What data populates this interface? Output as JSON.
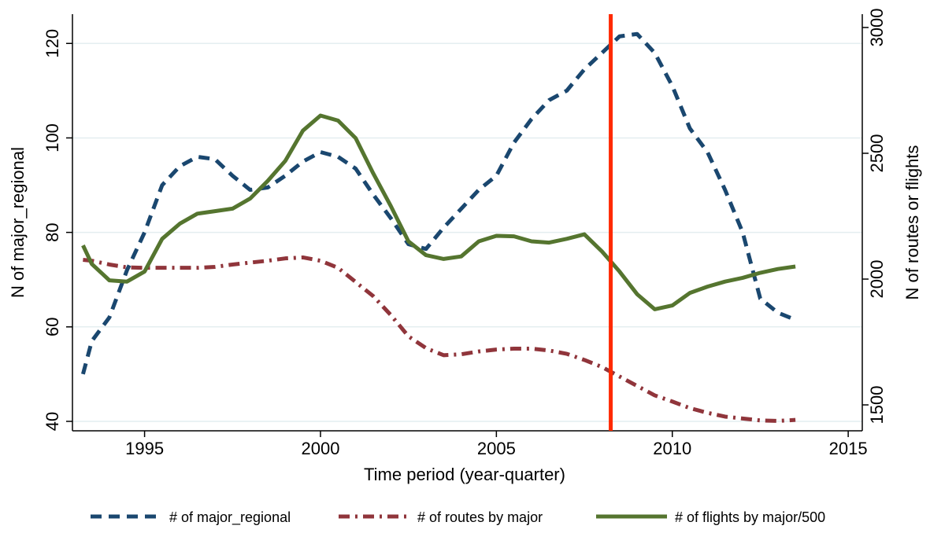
{
  "chart_data": {
    "type": "line",
    "x_label": "Time period (year-quarter)",
    "y_label": "N of major_regional",
    "y2_label": "N of routes or flights",
    "x": [
      1993.25,
      1993.5,
      1994,
      1994.5,
      1995,
      1995.5,
      1996,
      1996.5,
      1997,
      1997.5,
      1998,
      1998.5,
      1999,
      1999.5,
      2000,
      2000.5,
      2001,
      2001.5,
      2002,
      2002.5,
      2003,
      2003.5,
      2004,
      2004.5,
      2005,
      2005.5,
      2006,
      2006.5,
      2007,
      2007.5,
      2008,
      2008.5,
      2009,
      2009.5,
      2010,
      2010.5,
      2011,
      2011.5,
      2012,
      2012.5,
      2013,
      2013.5
    ],
    "series": [
      {
        "name": "# of major_regional",
        "color": "#1a476f",
        "dash": "dash",
        "values": [
          50,
          57,
          62,
          72,
          80,
          90,
          94,
          96,
          95.5,
          92,
          89,
          89.5,
          92,
          95,
          97,
          96,
          93.5,
          88,
          83,
          77.5,
          76.5,
          81,
          85,
          89,
          92,
          99,
          104,
          108,
          110,
          114.5,
          118,
          121.5,
          122,
          118,
          111,
          102,
          97,
          89,
          80,
          66,
          63,
          61.5
        ]
      },
      {
        "name": "# of routes by major",
        "color": "#90353b",
        "dash": "dashdot",
        "values": [
          74.2,
          74,
          73.2,
          72.6,
          72.5,
          72.5,
          72.5,
          72.5,
          72.7,
          73.2,
          73.6,
          74,
          74.5,
          74.7,
          74,
          72.5,
          69.5,
          66.5,
          62.5,
          58,
          55.5,
          54,
          54.2,
          54.8,
          55.2,
          55.4,
          55.4,
          55,
          54.3,
          53,
          51.5,
          49.5,
          47.5,
          45.5,
          44.2,
          42.8,
          41.8,
          41,
          40.6,
          40.2,
          40.1,
          40.3
        ]
      },
      {
        "name": "# of flights by major/500",
        "color": "#55752f",
        "dash": "solid",
        "axis": "y2",
        "values": [
          2134,
          2060,
          1995,
          1990,
          2030,
          2160,
          2220,
          2260,
          2270,
          2280,
          2320,
          2390,
          2470,
          2590,
          2650,
          2630,
          2560,
          2420,
          2290,
          2150,
          2095,
          2080,
          2090,
          2150,
          2172,
          2170,
          2150,
          2145,
          2160,
          2178,
          2110,
          2030,
          1940,
          1880,
          1895,
          1945,
          1970,
          1990,
          2005,
          2025,
          2040,
          2050
        ]
      }
    ],
    "vline": {
      "x": 2008.25,
      "color": "#ff2a00"
    },
    "xlim": [
      1992.95,
      2015.4
    ],
    "xticks": [
      1995,
      2000,
      2005,
      2010,
      2015
    ],
    "ylim": [
      38,
      126.2
    ],
    "yticks": [
      40,
      60,
      80,
      100,
      120
    ],
    "y2lim": [
      1397,
      3053
    ],
    "y2ticks": [
      1500,
      2000,
      2500,
      3000
    ],
    "grid": true,
    "legend": "bottom"
  }
}
